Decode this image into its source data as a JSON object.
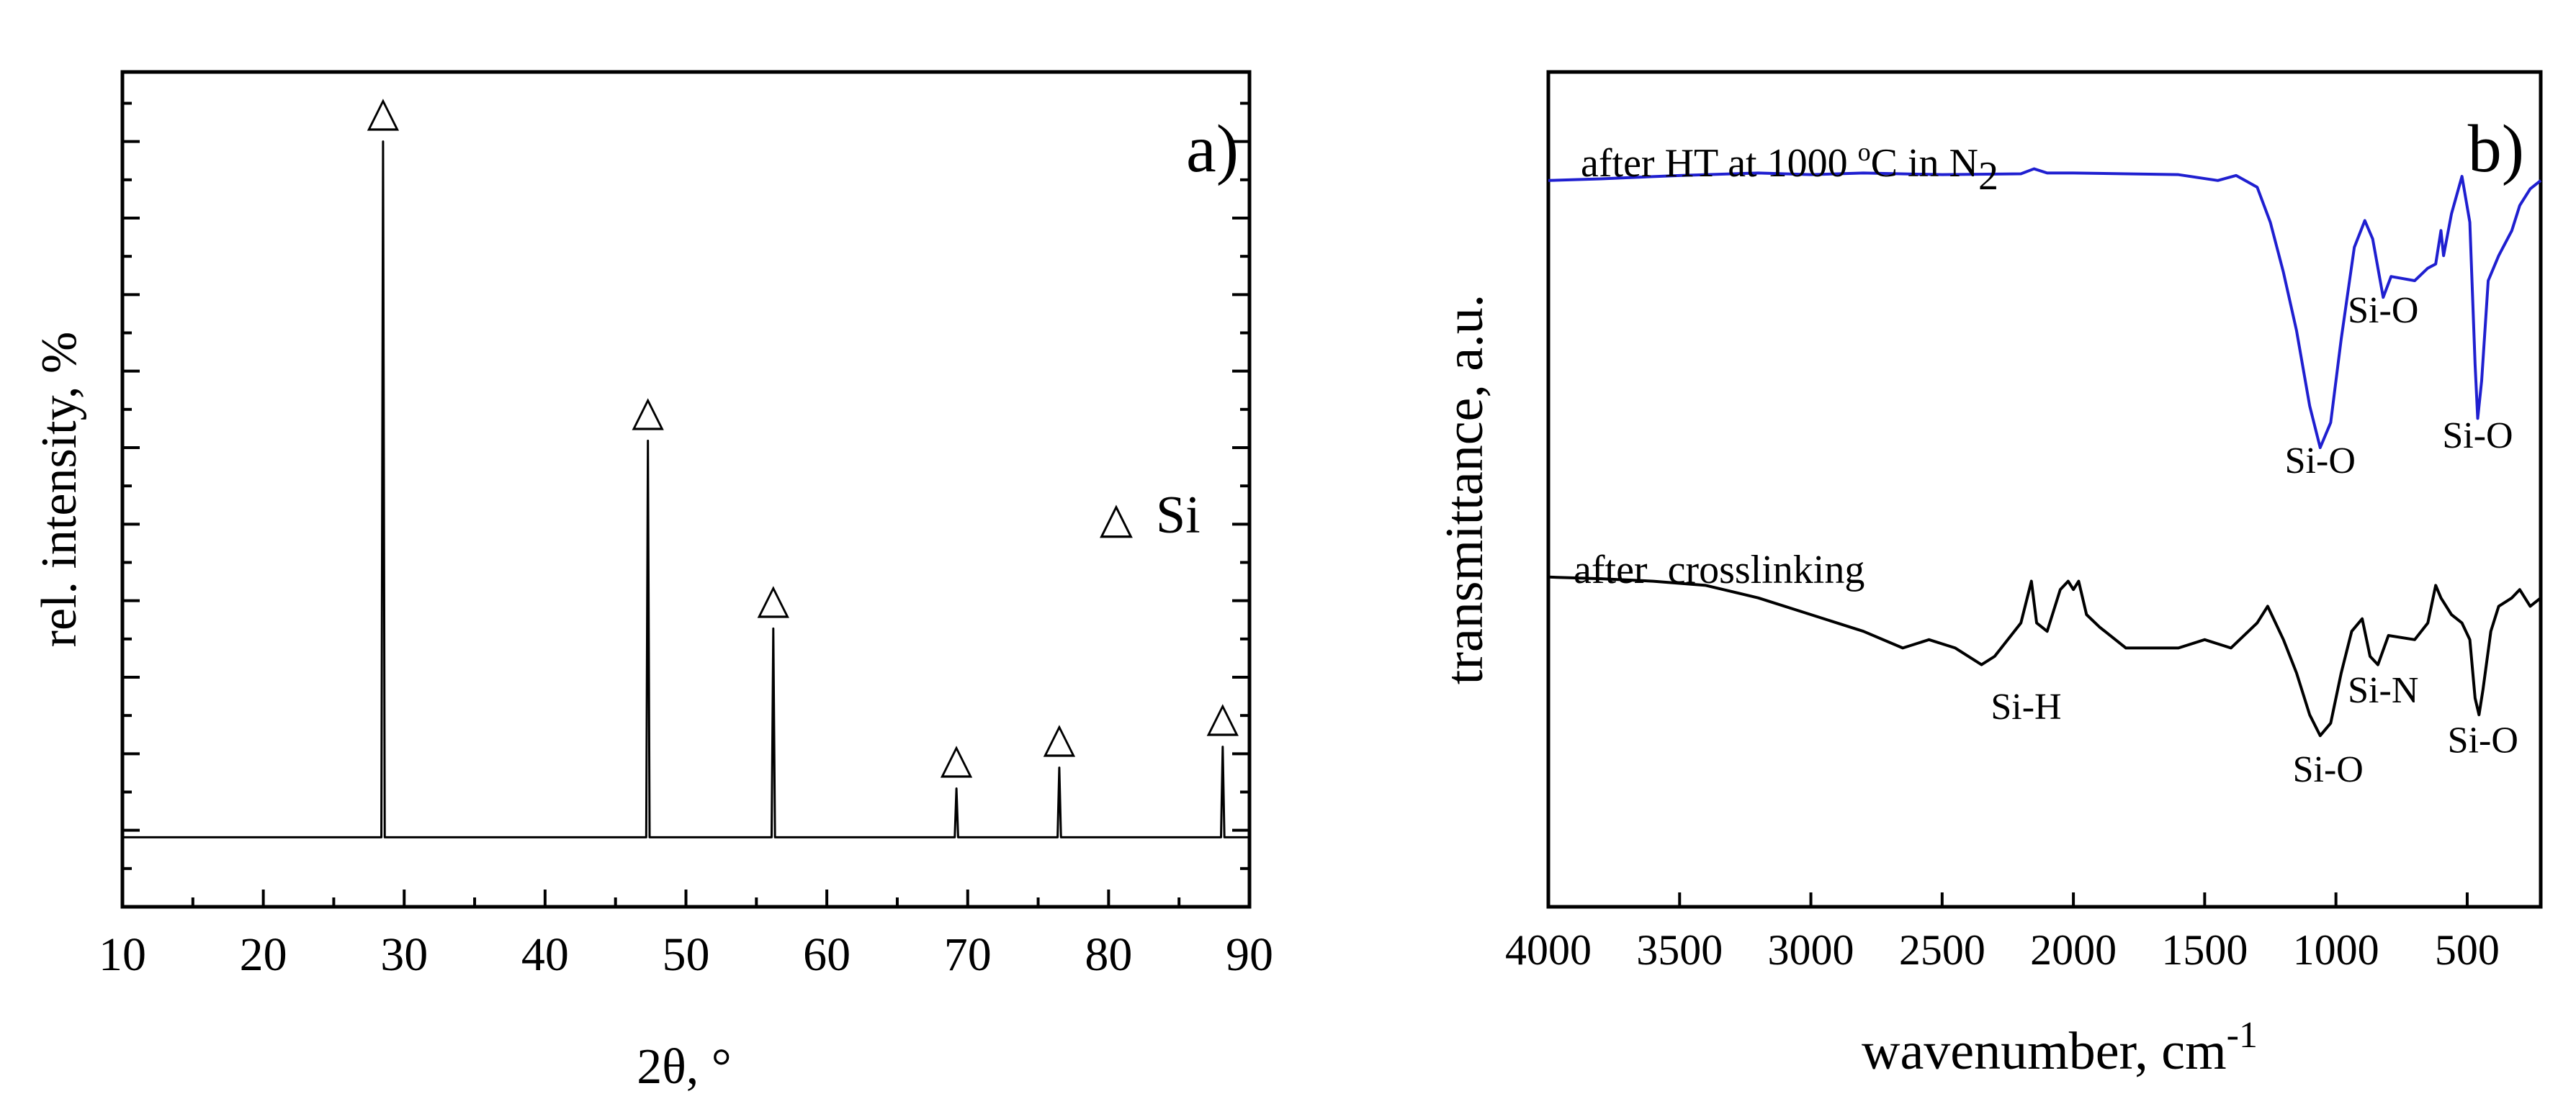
{
  "chart_data": [
    {
      "panel": "a)",
      "type": "line",
      "title": "",
      "xlabel": "2θ, °",
      "ylabel": "rel. intensity, %",
      "xlim": [
        10,
        90
      ],
      "ylim": [
        -10,
        110
      ],
      "grid": false,
      "x_ticks": [
        "10",
        "20",
        "30",
        "40",
        "50",
        "60",
        "70",
        "80",
        "90"
      ],
      "legend": {
        "marker": "△",
        "label": "Si",
        "position": "right-middle"
      },
      "marker_symbol": "△",
      "series": [
        {
          "name": "Si",
          "color": "#000000",
          "baseline": 0,
          "peaks": [
            {
              "x": 28.5,
              "y": 100
            },
            {
              "x": 47.3,
              "y": 57
            },
            {
              "x": 56.2,
              "y": 30
            },
            {
              "x": 69.2,
              "y": 7
            },
            {
              "x": 76.5,
              "y": 10
            },
            {
              "x": 88.1,
              "y": 13
            }
          ]
        }
      ]
    },
    {
      "panel": "b)",
      "type": "line",
      "title": "",
      "xlabel": "wavenumber, cm",
      "xlabel_sup": "-1",
      "ylabel": "transmittance, a.u.",
      "xlim": [
        4000,
        220
      ],
      "ylim": [
        0,
        1
      ],
      "grid": false,
      "x_ticks": [
        "4000",
        "3500",
        "3000",
        "2500",
        "2000",
        "1500",
        "1000",
        "500"
      ],
      "series": [
        {
          "name": "after HT at 1000 °C in N2",
          "label_parts": {
            "text1": "after HT at 1000 ",
            "sup": "o",
            "text2": "C in N",
            "sub": "2"
          },
          "color": "#1f1fd0",
          "points": [
            [
              4000,
              0.87
            ],
            [
              3800,
              0.872
            ],
            [
              3500,
              0.876
            ],
            [
              3200,
              0.879
            ],
            [
              3000,
              0.877
            ],
            [
              2800,
              0.879
            ],
            [
              2500,
              0.877
            ],
            [
              2200,
              0.878
            ],
            [
              2150,
              0.884
            ],
            [
              2100,
              0.879
            ],
            [
              2000,
              0.879
            ],
            [
              1800,
              0.878
            ],
            [
              1600,
              0.877
            ],
            [
              1450,
              0.87
            ],
            [
              1380,
              0.876
            ],
            [
              1300,
              0.862
            ],
            [
              1250,
              0.82
            ],
            [
              1200,
              0.76
            ],
            [
              1150,
              0.69
            ],
            [
              1100,
              0.6
            ],
            [
              1060,
              0.55
            ],
            [
              1020,
              0.58
            ],
            [
              980,
              0.68
            ],
            [
              930,
              0.79
            ],
            [
              890,
              0.822
            ],
            [
              860,
              0.8
            ],
            [
              820,
              0.73
            ],
            [
              790,
              0.755
            ],
            [
              700,
              0.75
            ],
            [
              650,
              0.765
            ],
            [
              620,
              0.77
            ],
            [
              600,
              0.81
            ],
            [
              590,
              0.78
            ],
            [
              560,
              0.83
            ],
            [
              520,
              0.875
            ],
            [
              490,
              0.82
            ],
            [
              470,
              0.65
            ],
            [
              460,
              0.585
            ],
            [
              445,
              0.63
            ],
            [
              420,
              0.75
            ],
            [
              380,
              0.78
            ],
            [
              330,
              0.81
            ],
            [
              300,
              0.84
            ],
            [
              260,
              0.86
            ],
            [
              220,
              0.87
            ]
          ],
          "annotations": [
            {
              "text": "Si-O",
              "x": 1060,
              "y": 0.52
            },
            {
              "text": "Si-O",
              "x": 820,
              "y": 0.7
            },
            {
              "text": "Si-O",
              "x": 460,
              "y": 0.55
            }
          ]
        },
        {
          "name": "after crosslinking",
          "label_parts": {
            "text1": "after  crosslinking"
          },
          "color": "#000000",
          "points": [
            [
              4000,
              0.395
            ],
            [
              3800,
              0.393
            ],
            [
              3600,
              0.39
            ],
            [
              3400,
              0.385
            ],
            [
              3200,
              0.37
            ],
            [
              3000,
              0.35
            ],
            [
              2800,
              0.33
            ],
            [
              2650,
              0.31
            ],
            [
              2550,
              0.32
            ],
            [
              2450,
              0.31
            ],
            [
              2350,
              0.29
            ],
            [
              2300,
              0.3
            ],
            [
              2200,
              0.34
            ],
            [
              2160,
              0.39
            ],
            [
              2140,
              0.34
            ],
            [
              2100,
              0.33
            ],
            [
              2050,
              0.38
            ],
            [
              2020,
              0.39
            ],
            [
              2000,
              0.38
            ],
            [
              1980,
              0.39
            ],
            [
              1950,
              0.35
            ],
            [
              1900,
              0.335
            ],
            [
              1800,
              0.31
            ],
            [
              1700,
              0.31
            ],
            [
              1600,
              0.31
            ],
            [
              1500,
              0.32
            ],
            [
              1400,
              0.31
            ],
            [
              1300,
              0.34
            ],
            [
              1260,
              0.36
            ],
            [
              1200,
              0.32
            ],
            [
              1150,
              0.28
            ],
            [
              1100,
              0.23
            ],
            [
              1060,
              0.205
            ],
            [
              1020,
              0.22
            ],
            [
              980,
              0.28
            ],
            [
              940,
              0.33
            ],
            [
              900,
              0.345
            ],
            [
              870,
              0.3
            ],
            [
              840,
              0.29
            ],
            [
              800,
              0.325
            ],
            [
              700,
              0.32
            ],
            [
              650,
              0.34
            ],
            [
              620,
              0.385
            ],
            [
              600,
              0.37
            ],
            [
              560,
              0.35
            ],
            [
              520,
              0.34
            ],
            [
              490,
              0.32
            ],
            [
              470,
              0.25
            ],
            [
              455,
              0.23
            ],
            [
              440,
              0.26
            ],
            [
              410,
              0.33
            ],
            [
              380,
              0.36
            ],
            [
              330,
              0.37
            ],
            [
              300,
              0.38
            ],
            [
              260,
              0.36
            ],
            [
              220,
              0.37
            ]
          ],
          "annotations": [
            {
              "text": "Si-H",
              "x": 2180,
              "y": 0.225
            },
            {
              "text": "Si-O",
              "x": 1030,
              "y": 0.15
            },
            {
              "text": "Si-N",
              "x": 820,
              "y": 0.245
            },
            {
              "text": "Si-O",
              "x": 440,
              "y": 0.185
            }
          ]
        }
      ]
    }
  ]
}
